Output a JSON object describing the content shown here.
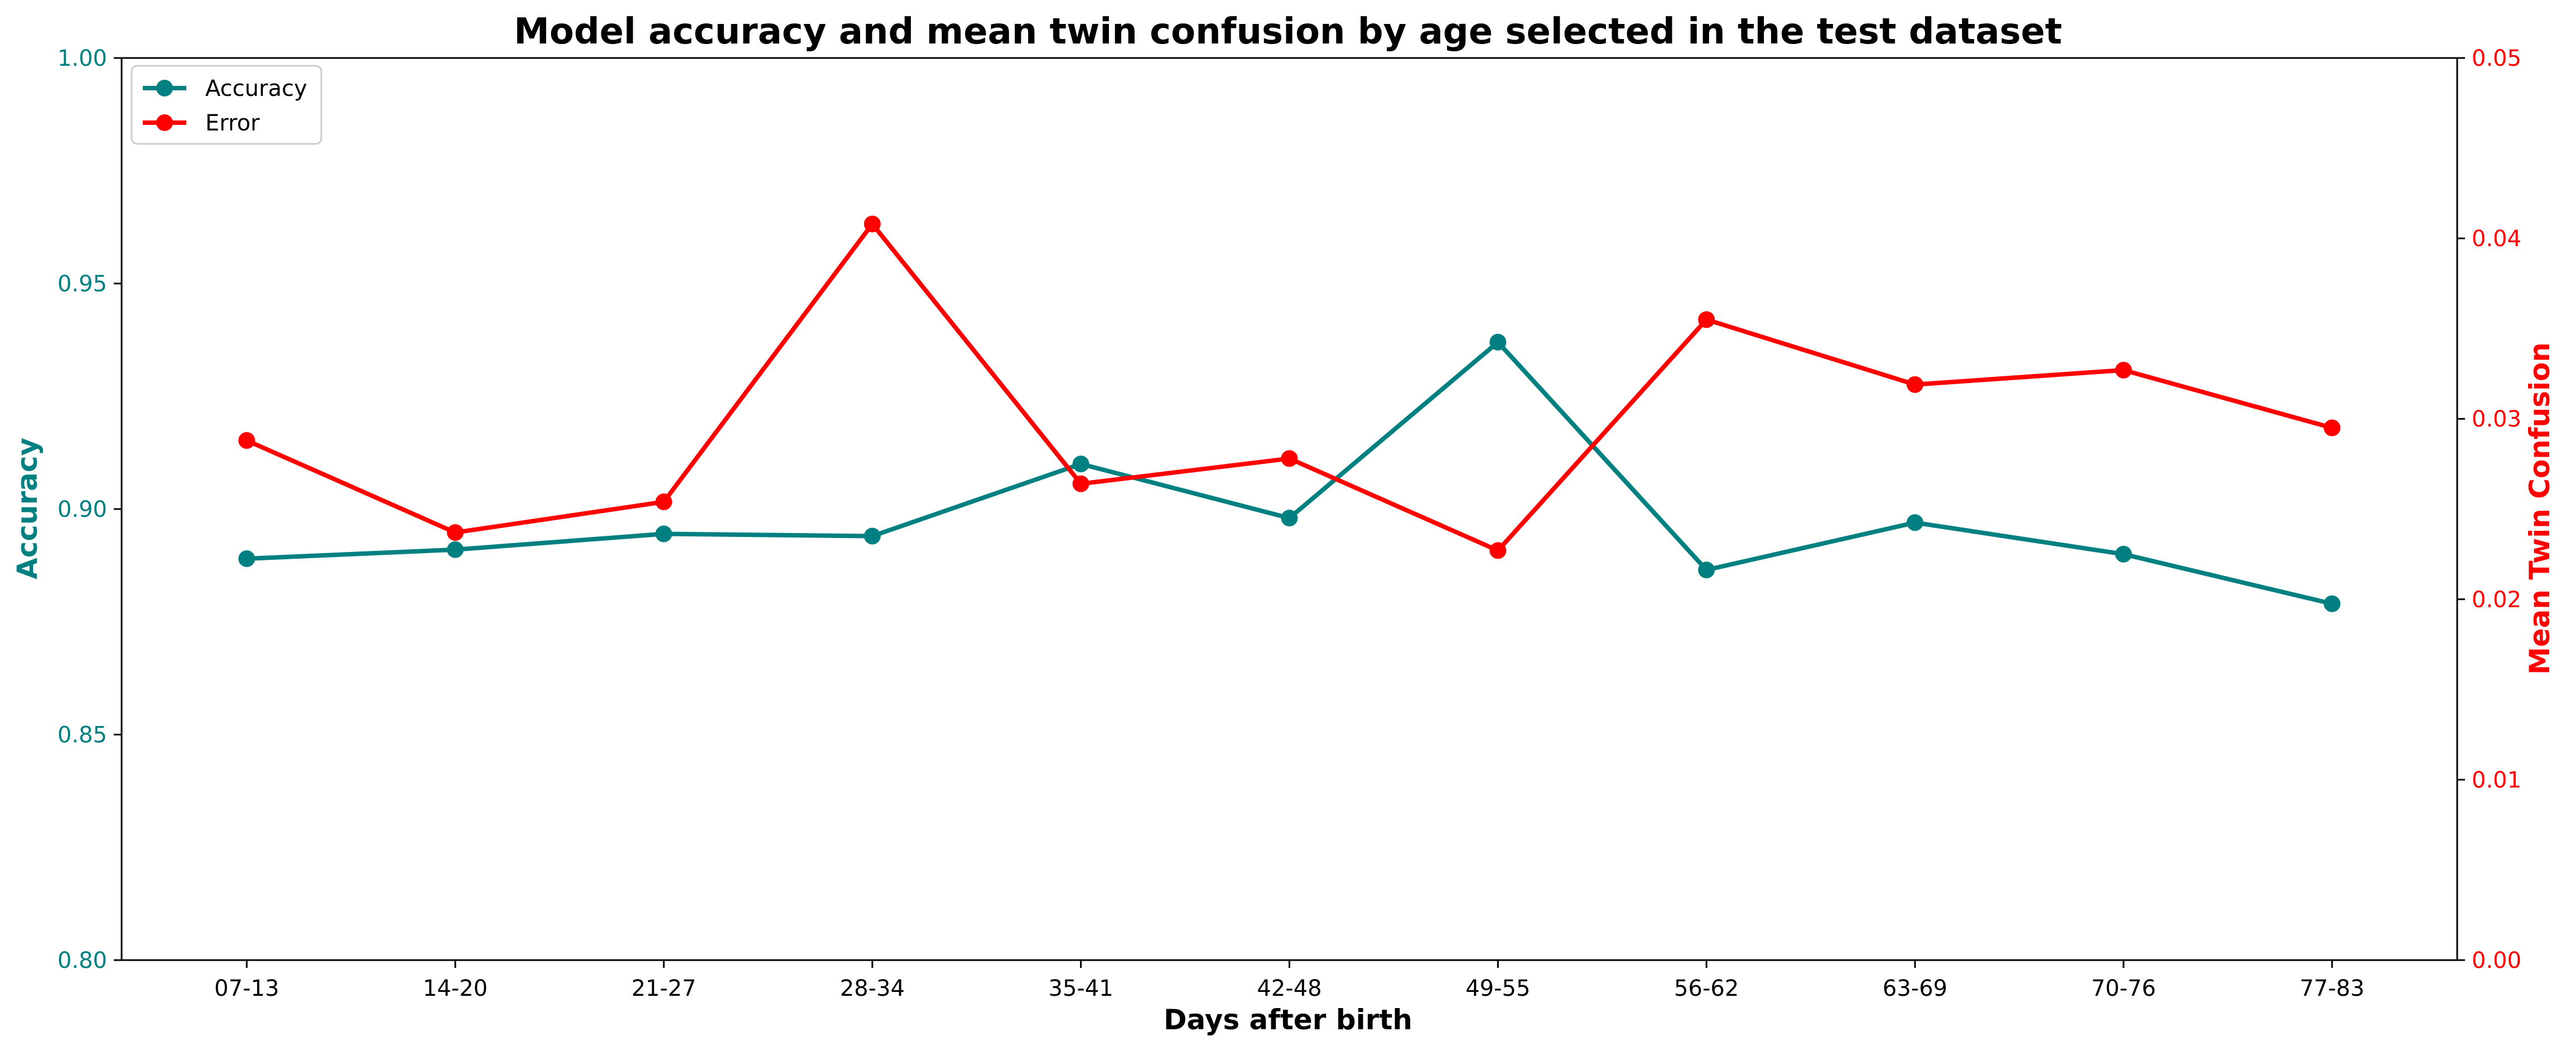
{
  "chart_data": {
    "type": "line",
    "title": "Model accuracy and mean twin confusion by age selected in the test dataset",
    "xlabel": "Days after birth",
    "ylabel_left": "Accuracy",
    "ylabel_right": "Mean Twin Confusion",
    "categories": [
      "07-13",
      "14-20",
      "21-27",
      "28-34",
      "35-41",
      "42-48",
      "49-55",
      "56-62",
      "63-69",
      "70-76",
      "77-83"
    ],
    "ylim_left": [
      0.8,
      1.0
    ],
    "yticks_left": [
      "0.80",
      "0.85",
      "0.90",
      "0.95",
      "1.00"
    ],
    "ylim_right": [
      0.0,
      0.05
    ],
    "yticks_right": [
      "0.00",
      "0.01",
      "0.02",
      "0.03",
      "0.04",
      "0.05"
    ],
    "grid": false,
    "legend_position": "top-left",
    "series": [
      {
        "name": "Accuracy",
        "axis": "left",
        "color": "#008080",
        "values": [
          0.889,
          0.891,
          0.8945,
          0.894,
          0.91,
          0.898,
          0.937,
          0.8865,
          0.897,
          0.89,
          0.879
        ]
      },
      {
        "name": "Error",
        "axis": "right",
        "color": "#ff0000",
        "values": [
          0.0288,
          0.0237,
          0.0254,
          0.0408,
          0.0264,
          0.0278,
          0.0227,
          0.0355,
          0.0319,
          0.0327,
          0.0295
        ]
      }
    ]
  }
}
